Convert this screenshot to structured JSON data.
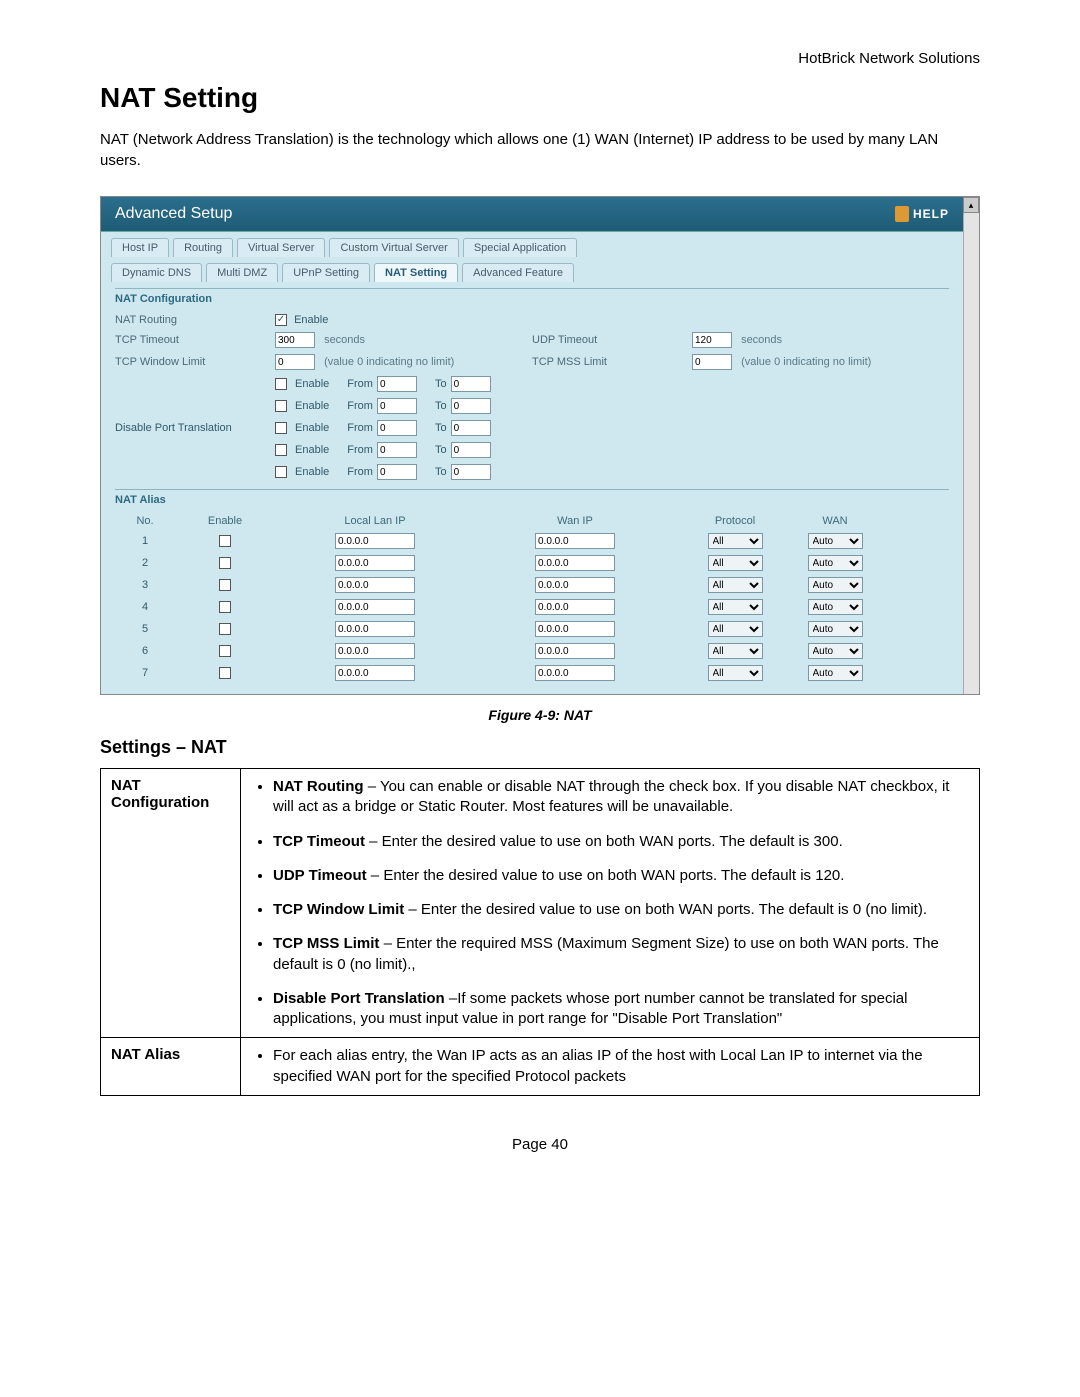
{
  "doc": {
    "header": "HotBrick Network Solutions",
    "title": "NAT Setting",
    "intro": "NAT (Network Address Translation) is the technology which allows one (1) WAN (Internet) IP address to be used by many LAN users.",
    "caption": "Figure 4-9: NAT",
    "section": "Settings – NAT",
    "footer": "Page 40"
  },
  "panel": {
    "title": "Advanced Setup",
    "help": "HELP",
    "tabs_row1": [
      "Host IP",
      "Routing",
      "Virtual Server",
      "Custom Virtual Server",
      "Special Application"
    ],
    "tabs_row2": [
      "Dynamic DNS",
      "Multi DMZ",
      "UPnP Setting",
      "NAT Setting",
      "Advanced Feature"
    ],
    "active_tab": "NAT Setting",
    "group1_title": "NAT Configuration",
    "nat_routing_label": "NAT Routing",
    "nat_routing_checkbox": "Enable",
    "tcp_timeout_label": "TCP Timeout",
    "tcp_timeout_value": "300",
    "seconds": "seconds",
    "udp_timeout_label": "UDP Timeout",
    "udp_timeout_value": "120",
    "tcp_window_label": "TCP Window Limit",
    "tcp_window_value": "0",
    "hint_nolimit": "(value 0 indicating no limit)",
    "tcp_mss_label": "TCP MSS Limit",
    "tcp_mss_value": "0",
    "dpt_label": "Disable Port Translation",
    "dpt_enable": "Enable",
    "from": "From",
    "to": "To",
    "dpt_val": "0",
    "group2_title": "NAT Alias",
    "alias_headers": {
      "no": "No.",
      "enable": "Enable",
      "lan": "Local Lan IP",
      "wan": "Wan IP",
      "proto": "Protocol",
      "wanport": "WAN"
    },
    "alias_rows": [
      1,
      2,
      3,
      4,
      5,
      6,
      7
    ],
    "alias_ip": "0.0.0.0",
    "proto_val": "All",
    "wan_val": "Auto"
  },
  "table": {
    "row1_key": "NAT Configuration",
    "row1_items": [
      {
        "b": "NAT Routing",
        "t": " – You can enable or disable NAT through the check box. If you disable NAT checkbox, it will act as a bridge or Static Router. Most features will be unavailable."
      },
      {
        "b": "TCP Timeout",
        "t": " – Enter the desired value to use on both WAN ports. The default is 300."
      },
      {
        "b": "UDP Timeout",
        "t": " – Enter the desired value to use on both WAN ports. The default is 120."
      },
      {
        "b": "TCP Window Limit",
        "t": " – Enter the desired value to use on both WAN ports. The default is 0 (no limit)."
      },
      {
        "b": "TCP MSS Limit",
        "t": " – Enter the required MSS (Maximum Segment Size) to use on both WAN ports. The default is 0 (no limit).,"
      },
      {
        "b": "Disable Port Translation",
        "t": " –If some packets whose port number cannot be translated for special applications, you must input value in port range for \"Disable Port Translation\""
      }
    ],
    "row2_key": "NAT Alias",
    "row2_text": "For each alias entry, the Wan IP acts as an alias IP of the host with Local Lan IP to internet via the specified WAN port for the specified Protocol packets"
  },
  "style": {
    "panel_bg": "#cfe7ef",
    "panel_header_bg": "#246a87",
    "text_muted": "#4a6a78"
  }
}
